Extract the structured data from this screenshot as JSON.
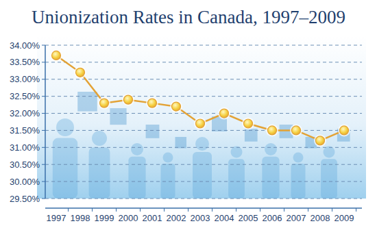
{
  "chart_data": {
    "type": "line",
    "title": "Unionization Rates in Canada, 1997–2009",
    "categories": [
      "1997",
      "1998",
      "1999",
      "2000",
      "2001",
      "2002",
      "2003",
      "2004",
      "2005",
      "2006",
      "2007",
      "2008",
      "2009"
    ],
    "values": [
      33.7,
      33.2,
      32.3,
      32.4,
      32.3,
      32.2,
      31.7,
      32.0,
      31.7,
      31.5,
      31.5,
      31.2,
      31.5
    ],
    "color": "#e3a235",
    "marker": "circle",
    "ylim": [
      29.5,
      34.0
    ],
    "yticks": [
      {
        "value": 29.5,
        "label": "29.50%"
      },
      {
        "value": 30.0,
        "label": "30.00%"
      },
      {
        "value": 30.5,
        "label": "30.50%"
      },
      {
        "value": 31.0,
        "label": "31.00%"
      },
      {
        "value": 31.5,
        "label": "31.50%"
      },
      {
        "value": 32.0,
        "label": "32.00%"
      },
      {
        "value": 32.5,
        "label": "32.50%"
      },
      {
        "value": 33.0,
        "label": "33.00%"
      },
      {
        "value": 33.5,
        "label": "33.50%"
      },
      {
        "value": 34.0,
        "label": "34.00%"
      }
    ],
    "grid": true
  }
}
